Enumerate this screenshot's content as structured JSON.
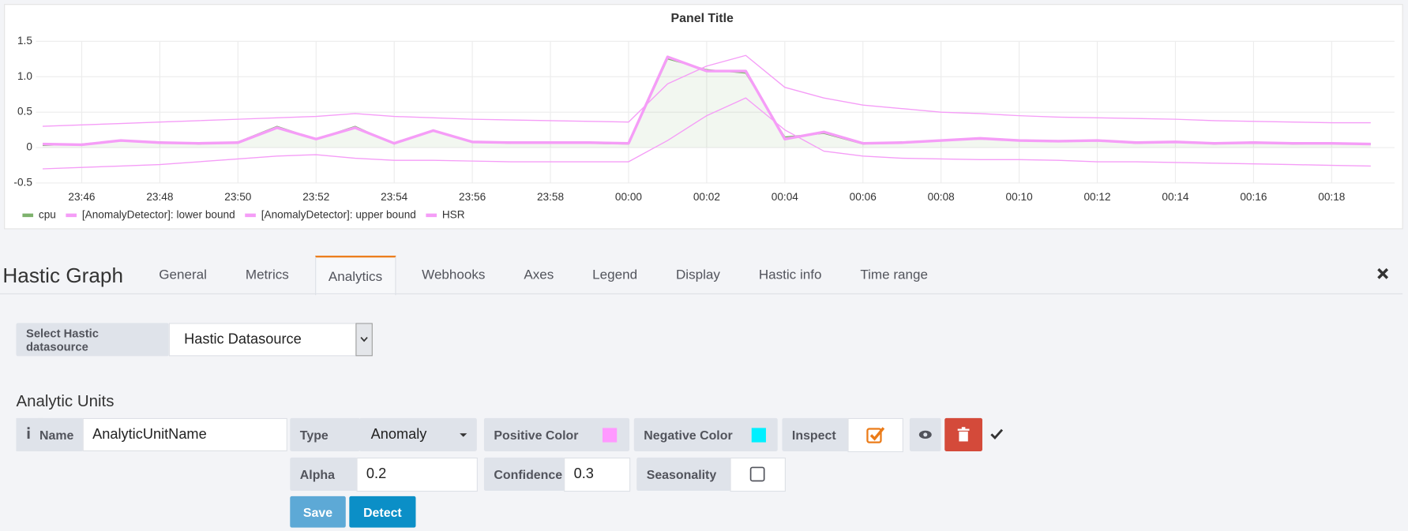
{
  "chart_data": {
    "type": "line",
    "title": "Panel Title",
    "x": [
      "23:45",
      "23:46",
      "23:47",
      "23:48",
      "23:49",
      "23:50",
      "23:51",
      "23:52",
      "23:53",
      "23:54",
      "23:55",
      "23:56",
      "23:57",
      "23:58",
      "23:59",
      "00:00",
      "00:01",
      "00:02",
      "00:03",
      "00:04",
      "00:05",
      "00:06",
      "00:07",
      "00:08",
      "00:09",
      "00:10",
      "00:11",
      "00:12",
      "00:13",
      "00:14",
      "00:15",
      "00:16",
      "00:17",
      "00:18",
      "00:19"
    ],
    "series": [
      {
        "name": "cpu",
        "color": "#7eb26d",
        "fill": true,
        "line_width": 1.2,
        "values": [
          0.03,
          0.05,
          0.1,
          0.08,
          0.05,
          0.08,
          0.3,
          0.12,
          0.3,
          0.05,
          0.25,
          0.08,
          0.06,
          0.08,
          0.06,
          0.05,
          1.25,
          1.1,
          1.05,
          0.15,
          0.2,
          0.05,
          0.08,
          0.1,
          0.12,
          0.1,
          0.08,
          0.1,
          0.06,
          0.08,
          0.05,
          0.08,
          0.05,
          0.06,
          0.05
        ]
      },
      {
        "name": "[AnomalyDetector]: lower bound",
        "color": "#f59df7",
        "fill": false,
        "line_width": 1.2,
        "values": [
          -0.3,
          -0.28,
          -0.26,
          -0.24,
          -0.2,
          -0.16,
          -0.12,
          -0.1,
          -0.15,
          -0.18,
          -0.18,
          -0.19,
          -0.2,
          -0.2,
          -0.2,
          -0.2,
          0.1,
          0.45,
          0.7,
          0.25,
          -0.05,
          -0.12,
          -0.15,
          -0.16,
          -0.17,
          -0.17,
          -0.18,
          -0.2,
          -0.2,
          -0.21,
          -0.22,
          -0.23,
          -0.24,
          -0.25,
          -0.26
        ]
      },
      {
        "name": "[AnomalyDetector]: upper bound",
        "color": "#f59df7",
        "fill": false,
        "line_width": 1.2,
        "values": [
          0.3,
          0.32,
          0.34,
          0.36,
          0.38,
          0.4,
          0.42,
          0.44,
          0.48,
          0.44,
          0.42,
          0.4,
          0.39,
          0.38,
          0.37,
          0.36,
          0.9,
          1.15,
          1.3,
          0.85,
          0.7,
          0.6,
          0.55,
          0.5,
          0.48,
          0.45,
          0.43,
          0.42,
          0.41,
          0.4,
          0.38,
          0.37,
          0.36,
          0.35,
          0.35
        ]
      },
      {
        "name": "HSR",
        "color": "#f59df7",
        "fill": false,
        "line_width": 3,
        "values": [
          0.05,
          0.04,
          0.1,
          0.07,
          0.06,
          0.07,
          0.28,
          0.12,
          0.28,
          0.06,
          0.24,
          0.08,
          0.07,
          0.07,
          0.07,
          0.06,
          1.28,
          1.08,
          1.08,
          0.12,
          0.22,
          0.06,
          0.07,
          0.1,
          0.13,
          0.1,
          0.09,
          0.1,
          0.07,
          0.08,
          0.06,
          0.07,
          0.06,
          0.06,
          0.05
        ]
      }
    ],
    "ylim": [
      -0.5,
      1.5
    ],
    "yticks": [
      -0.5,
      0,
      0.5,
      {
        "value": 1,
        "label": "1.0"
      },
      1.5
    ],
    "xticks": [
      "23:46",
      "23:48",
      "23:50",
      "23:52",
      "23:54",
      "23:56",
      "23:58",
      "00:00",
      "00:02",
      "00:04",
      "00:06",
      "00:08",
      "00:10",
      "00:12",
      "00:14",
      "00:16",
      "00:18"
    ],
    "grid": true,
    "legend": "bottom-left"
  },
  "editor": {
    "title": "Hastic Graph",
    "tabs": [
      "General",
      "Metrics",
      "Analytics",
      "Webhooks",
      "Axes",
      "Legend",
      "Display",
      "Hastic info",
      "Time range"
    ],
    "active_tab": 2
  },
  "datasource": {
    "label": "Select Hastic datasource",
    "value": "Hastic Datasource"
  },
  "analytic_units": {
    "title": "Analytic Units",
    "name_label": "Name",
    "name": "AnalyticUnitName",
    "type_label": "Type",
    "type": "Anomaly",
    "positive_color_label": "Positive Color",
    "positive_color": "#ff99ff",
    "negative_color_label": "Negative Color",
    "negative_color": "#00f0ff",
    "inspect_label": "Inspect",
    "inspect": true,
    "alpha_label": "Alpha",
    "alpha": 0.2,
    "confidence_label": "Confidence",
    "confidence": 0.3,
    "seasonality_label": "Seasonality",
    "seasonality": false,
    "save": "Save",
    "detect": "Detect"
  }
}
